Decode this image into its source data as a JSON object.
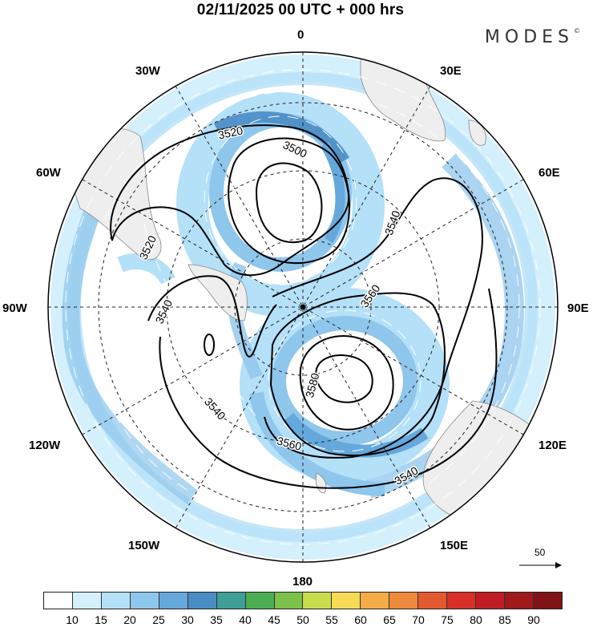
{
  "title": "02/11/2025  00 UTC  + 000 hrs",
  "brand": "MODES",
  "brand_mark": "©",
  "longitude_labels": {
    "top": "0",
    "top_left": "30W",
    "top_right": "30E",
    "upper_left": "60W",
    "upper_right": "60E",
    "left": "90W",
    "right": "90E",
    "lower_left": "120W",
    "lower_right": "120E",
    "bottom_left": "150W",
    "bottom_right": "150E",
    "bottom": "180"
  },
  "contour_labels": [
    "3520",
    "3500",
    "3520",
    "3540",
    "3540",
    "3560",
    "3580",
    "3540",
    "3560",
    "3540"
  ],
  "reference_vector": "50",
  "colorbar": {
    "colors": [
      "#ffffff",
      "#d4f0fc",
      "#b4e0f8",
      "#8ec6ec",
      "#64a8dc",
      "#4a8cc4",
      "#3e9e98",
      "#4bae52",
      "#7cc24a",
      "#c8dc4e",
      "#f6dc56",
      "#f4ac48",
      "#ee8a3c",
      "#e45a30",
      "#d83028",
      "#c01e24",
      "#a01a1c",
      "#801416"
    ],
    "tick_labels": [
      "10",
      "15",
      "20",
      "25",
      "30",
      "35",
      "40",
      "45",
      "50",
      "55",
      "60",
      "65",
      "70",
      "75",
      "80",
      "85",
      "90"
    ]
  },
  "colors": {
    "land": "#eeeeee",
    "coast": "#888888",
    "contour": "#000000"
  }
}
